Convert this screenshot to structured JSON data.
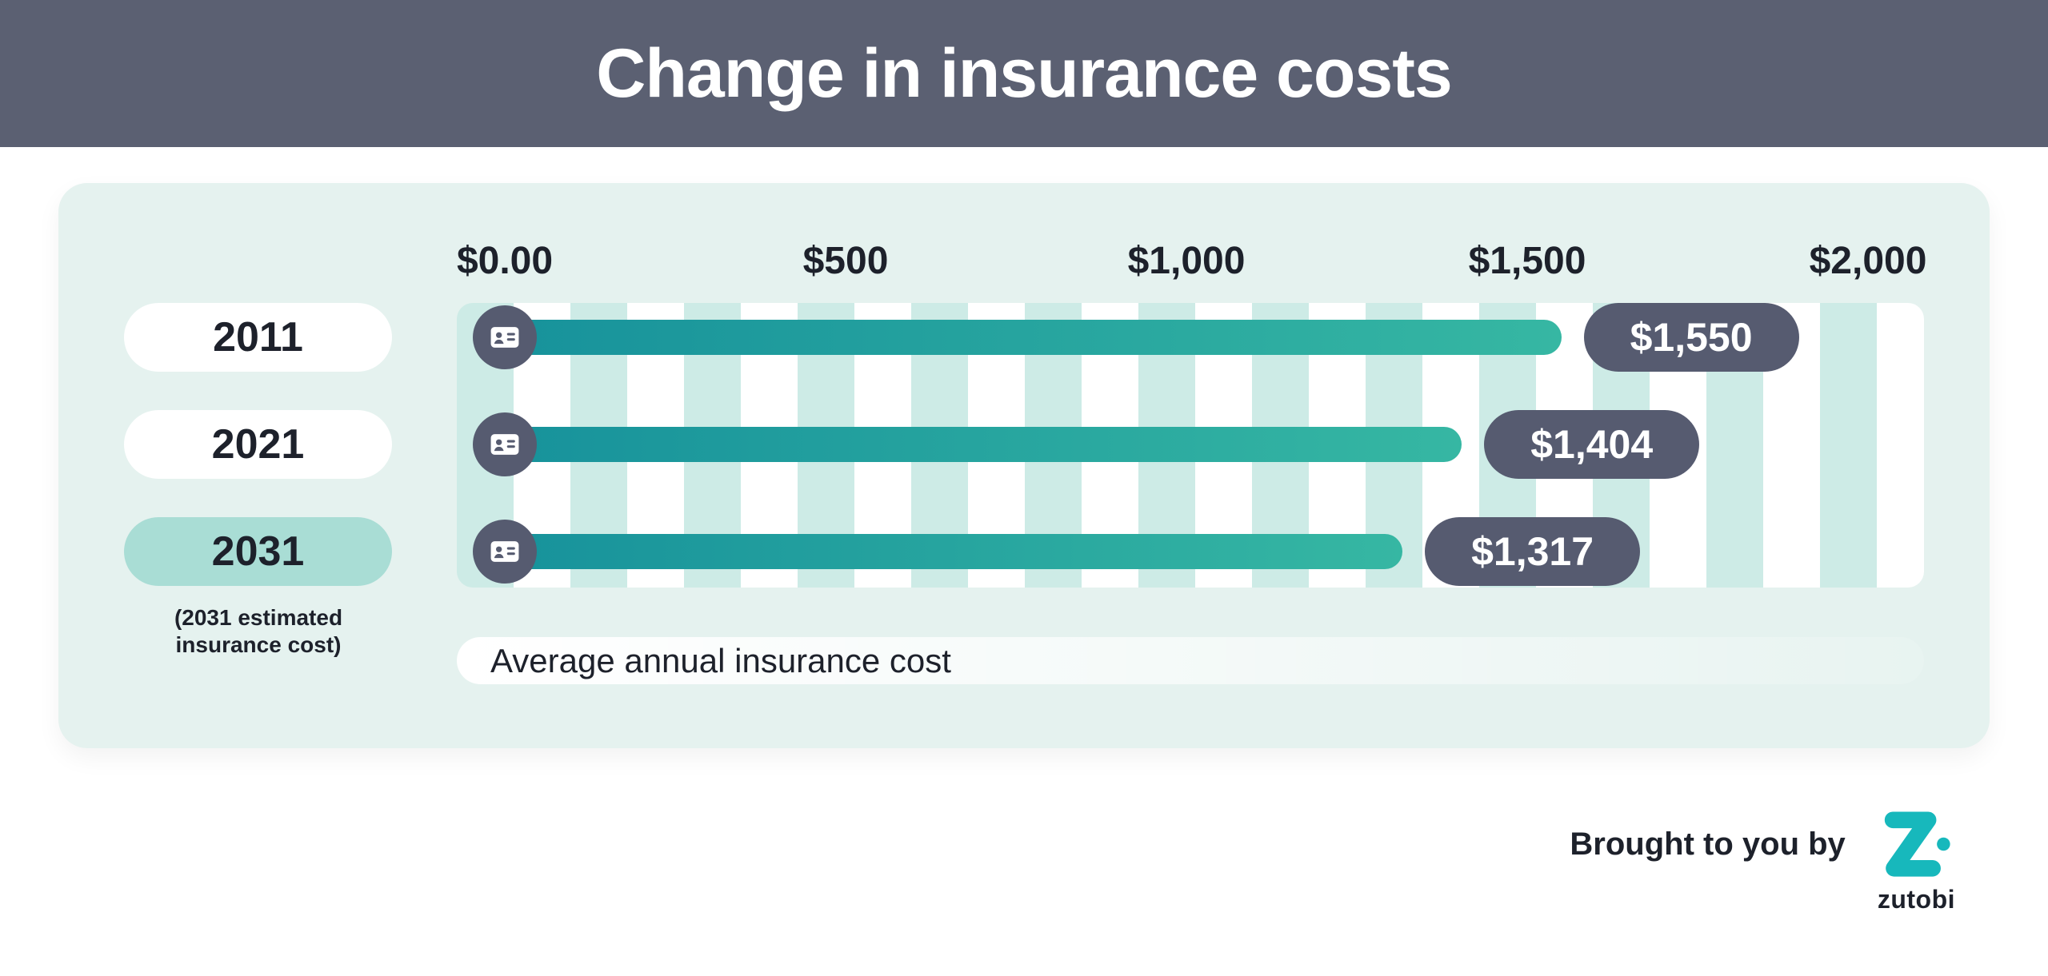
{
  "header": {
    "title": "Change in insurance costs"
  },
  "chart_data": {
    "type": "bar",
    "orientation": "horizontal",
    "title": "Change in insurance costs",
    "categories": [
      "2011",
      "2021",
      "2031"
    ],
    "values": [
      1550,
      1404,
      1317
    ],
    "value_labels": [
      "$1,550",
      "$1,404",
      "$1,317"
    ],
    "x_ticks": [
      "$0.00",
      "$500",
      "$1,000",
      "$1,500",
      "$2,000"
    ],
    "x_tick_values": [
      0,
      500,
      1000,
      1500,
      2000
    ],
    "xlim": [
      0,
      2000
    ],
    "xlabel": "Average annual insurance cost",
    "note": "(2031 estimated insurance cost)",
    "highlight_category": "2031",
    "legend": "none",
    "grid": "vertical striped bands"
  },
  "icons": {
    "row_icon": "id-card-icon",
    "brand_icon": "zutobi-logo"
  },
  "footer": {
    "attribution": "Brought to you by",
    "brand": "zutobi"
  },
  "colors": {
    "header_bg": "#5b6072",
    "panel_bg": "#e5f2ef",
    "stripe": "#cdebe6",
    "bar_start": "#17929b",
    "bar_end": "#36b7a3",
    "badge_bg": "#565b70",
    "highlight_pill": "#a9ddd5",
    "brand_teal": "#17b8bc",
    "text_dark": "#1d212b"
  }
}
